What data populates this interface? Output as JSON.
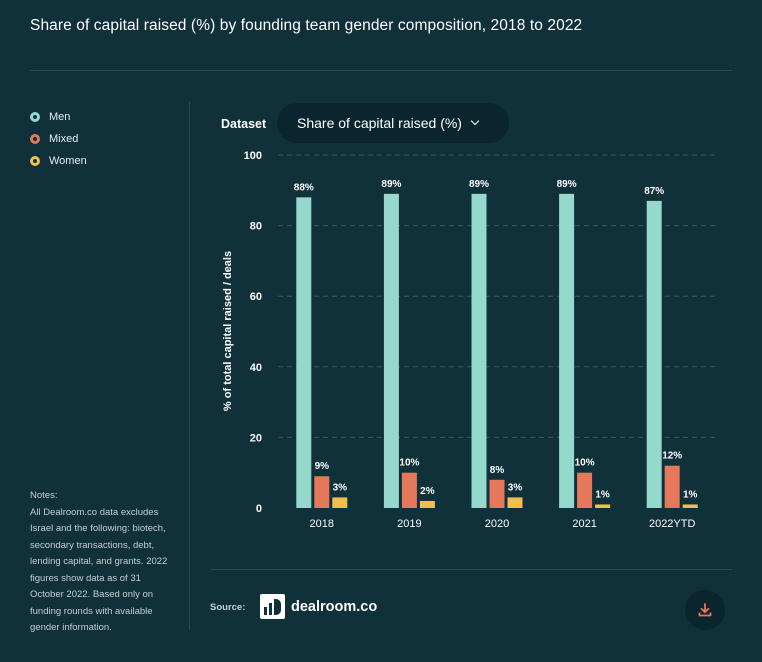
{
  "title": "Share of capital raised (%) by founding team gender composition, 2018 to 2022",
  "legend": [
    {
      "label": "Men",
      "color": "#95d8cc"
    },
    {
      "label": "Mixed",
      "color": "#e5775a"
    },
    {
      "label": "Women",
      "color": "#f2c04a"
    }
  ],
  "dataset": {
    "label": "Dataset",
    "selected": "Share of capital raised (%)",
    "icon": "chevron-down-icon"
  },
  "notes": [
    "Notes:",
    "All Dealroom.co data excludes",
    "Israel and the following: biotech,",
    "secondary transactions, debt,",
    "lending capital, and grants. 2022",
    "figures show data as of 31",
    "October 2022. Based only on",
    "funding rounds with available",
    "gender information."
  ],
  "source": {
    "label": "Source:",
    "brand": "dealroom.co"
  },
  "download_icon": "download-icon",
  "chart_data": {
    "type": "bar",
    "categories": [
      "2018",
      "2019",
      "2020",
      "2021",
      "2022YTD"
    ],
    "series": [
      {
        "name": "Men",
        "values": [
          88,
          89,
          89,
          89,
          87
        ],
        "labels": [
          "88%",
          "89%",
          "89%",
          "89%",
          "87%"
        ],
        "color": "#95d8cc"
      },
      {
        "name": "Mixed",
        "values": [
          9,
          10,
          8,
          10,
          12
        ],
        "labels": [
          "9%",
          "10%",
          "8%",
          "10%",
          "12%"
        ],
        "color": "#e5775a"
      },
      {
        "name": "Women",
        "values": [
          3,
          2,
          3,
          1,
          1
        ],
        "labels": [
          "3%",
          "2%",
          "3%",
          "1%",
          "1%"
        ],
        "color": "#f2c04a"
      }
    ],
    "ylabel": "% of total capital raised / deals",
    "ylim": [
      0,
      100
    ],
    "yticks": [
      "0",
      "20",
      "40",
      "60",
      "80",
      "100"
    ],
    "grid": true
  }
}
